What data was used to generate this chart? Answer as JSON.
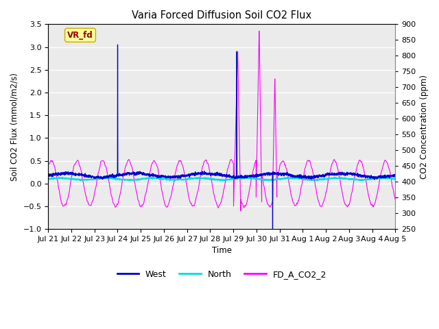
{
  "title": "Varia Forced Diffusion Soil CO2 Flux",
  "xlabel": "Time",
  "ylabel_left": "Soil CO2 Flux (mmol/m2/s)",
  "ylabel_right": "CO2 Concentration (ppm)",
  "ylim_left": [
    -1.0,
    3.5
  ],
  "ylim_right": [
    250,
    900
  ],
  "fig_bg_color": "#ffffff",
  "plot_bg_color": "#ebebeb",
  "west_color": "#0000CD",
  "north_color": "#00DDDD",
  "co2_color": "#FF00FF",
  "vr_fd_box_color": "#FFFF99",
  "vr_fd_text_color": "#990000",
  "vr_fd_edge_color": "#CCAA00",
  "xtick_labels": [
    "Jul 21",
    "Jul 22",
    "Jul 23",
    "Jul 24",
    "Jul 25",
    "Jul 26",
    "Jul 27",
    "Jul 28",
    "Jul 29",
    "Jul 30",
    "Jul 31",
    "Aug 1",
    "Aug 2",
    "Aug 3",
    "Aug 4",
    "Aug 5"
  ],
  "yticks_left": [
    -1.0,
    -0.5,
    0.0,
    0.5,
    1.0,
    1.5,
    2.0,
    2.5,
    3.0,
    3.5
  ],
  "yticks_right": [
    250,
    300,
    350,
    400,
    450,
    500,
    550,
    600,
    650,
    700,
    750,
    800,
    850,
    900
  ],
  "n_points": 3360,
  "seed": 42,
  "legend_labels": [
    "West",
    "North",
    "FD_A_CO2_2"
  ]
}
